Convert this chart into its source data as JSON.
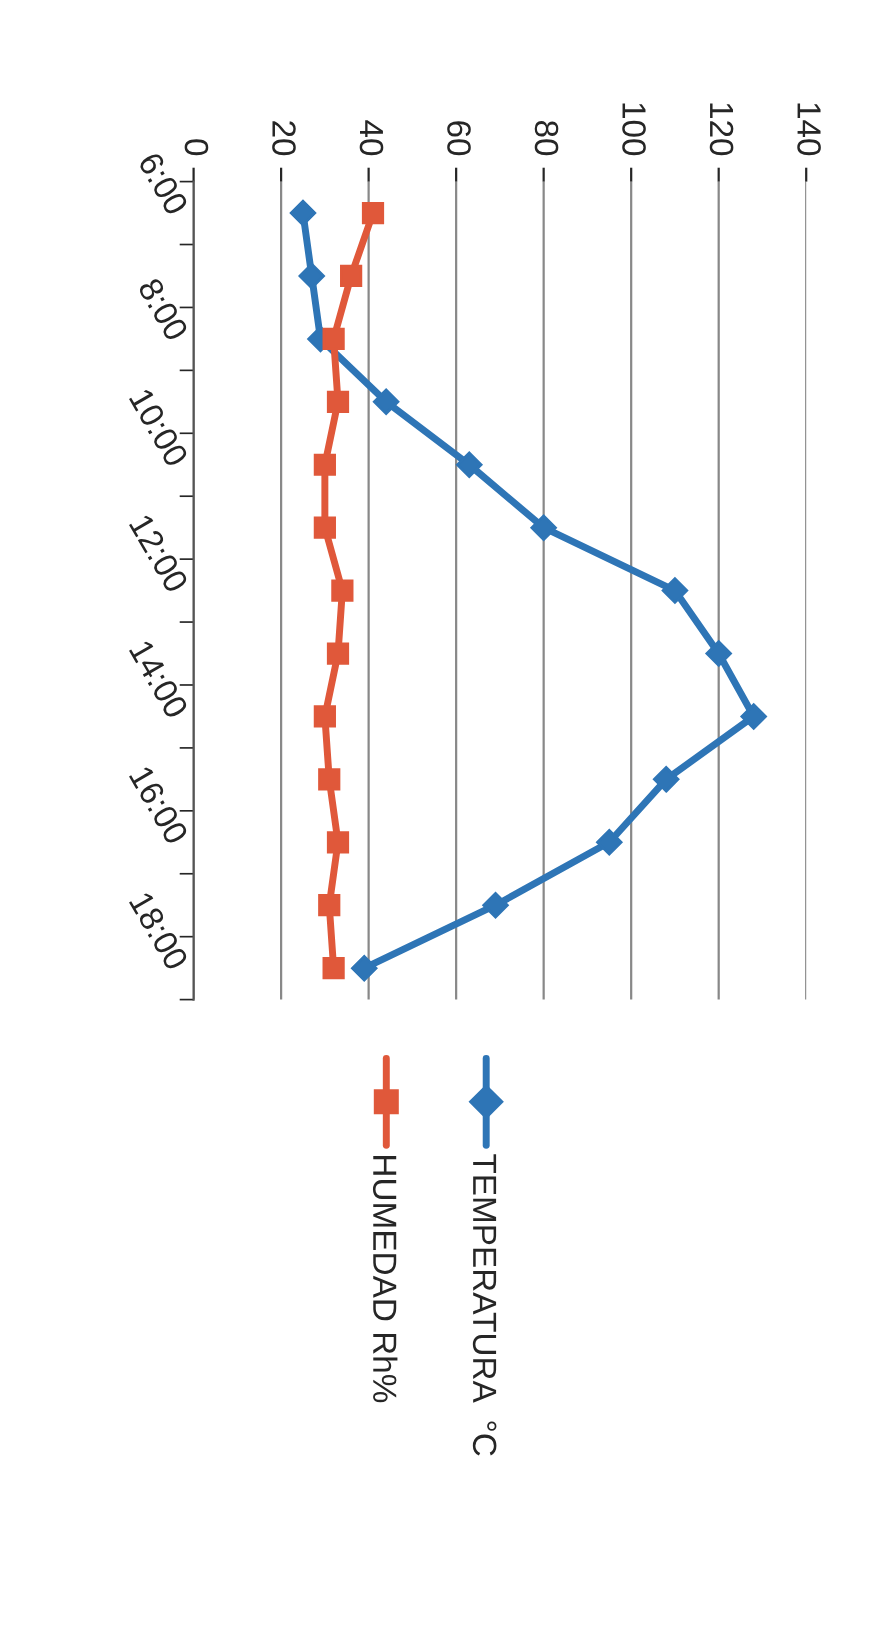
{
  "chart_data": {
    "type": "line",
    "orientation": "horizontal",
    "categories": [
      "6:00",
      null,
      "8:00",
      null,
      "10:00",
      null,
      "12:00",
      null,
      "14:00",
      null,
      "16:00",
      null,
      "18:00"
    ],
    "series": [
      {
        "name": "TEMPERATURA  °C",
        "color": "#2e75b6",
        "marker": "diamond",
        "values": [
          25,
          27,
          29,
          44,
          63,
          80,
          110,
          120,
          128,
          108,
          95,
          69,
          39
        ]
      },
      {
        "name": "HUMEDAD Rh%",
        "color": "#e0583a",
        "marker": "square",
        "values": [
          41,
          36,
          32,
          33,
          30,
          30,
          34,
          33,
          30,
          31,
          33,
          31,
          32
        ]
      }
    ],
    "xlim": [
      0,
      140
    ],
    "xticks": [
      0,
      20,
      40,
      60,
      80,
      100,
      120,
      140
    ],
    "grid": "x",
    "legend": "bottom"
  }
}
